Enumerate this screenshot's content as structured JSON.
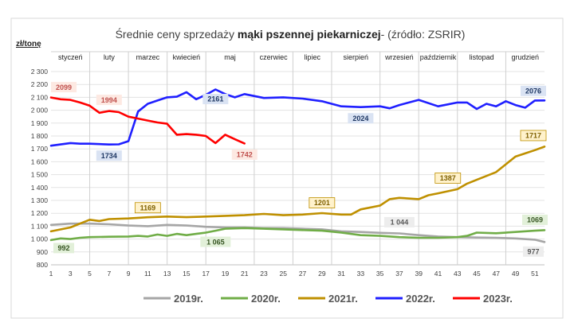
{
  "title": {
    "prefix": "Średnie ceny sprzedaży ",
    "bold": "mąki pszennej piekarniczej",
    "suffix": "- (źródło: ZSRIR)"
  },
  "unit": "zł/tonę",
  "colors": {
    "2019r.": "#a6a6a6",
    "2020r.": "#70ad47",
    "2021r.": "#bf9000",
    "2022r.": "#1f1fff",
    "2023r.": "#ff0000"
  },
  "chart_data": {
    "type": "line",
    "title": "Średnie ceny sprzedaży mąki pszennej piekarniczej- (źródło: ZSRIR)",
    "ylabel": "zł/tonę",
    "xlabel": "",
    "xlim": [
      1,
      52
    ],
    "ylim": [
      800,
      2300
    ],
    "x_ticks": [
      1,
      3,
      5,
      7,
      9,
      11,
      13,
      15,
      17,
      19,
      21,
      23,
      25,
      27,
      29,
      31,
      33,
      35,
      37,
      39,
      41,
      43,
      45,
      47,
      49,
      51
    ],
    "y_ticks": [
      800,
      900,
      1000,
      1100,
      1200,
      1300,
      1400,
      1500,
      1600,
      1700,
      1800,
      1900,
      2000,
      2100,
      2200,
      2300
    ],
    "y_tick_labels": [
      "800",
      "900",
      "1 000",
      "1 100",
      "1 200",
      "1 300",
      "1 400",
      "1 500",
      "1 600",
      "1 700",
      "1 800",
      "1 900",
      "2 000",
      "2 100",
      "2 200",
      "2 300"
    ],
    "months": [
      {
        "name": "styczeń",
        "start": 1,
        "end": 5
      },
      {
        "name": "luty",
        "start": 5,
        "end": 9
      },
      {
        "name": "marzec",
        "start": 9,
        "end": 13
      },
      {
        "name": "kwiecień",
        "start": 13,
        "end": 17
      },
      {
        "name": "maj",
        "start": 17,
        "end": 22
      },
      {
        "name": "czerwiec",
        "start": 22,
        "end": 26
      },
      {
        "name": "lipiec",
        "start": 26,
        "end": 30
      },
      {
        "name": "sierpień",
        "start": 30,
        "end": 35
      },
      {
        "name": "wrzesień",
        "start": 35,
        "end": 39
      },
      {
        "name": "październik",
        "start": 39,
        "end": 43
      },
      {
        "name": "listopad",
        "start": 43,
        "end": 48
      },
      {
        "name": "grudzień",
        "start": 48,
        "end": 52
      }
    ],
    "series": [
      {
        "name": "2019r.",
        "x": [
          1,
          3,
          5,
          7,
          9,
          11,
          13,
          15,
          17,
          19,
          21,
          23,
          25,
          27,
          29,
          31,
          33,
          35,
          37,
          39,
          41,
          43,
          45,
          47,
          49,
          51,
          52
        ],
        "values": [
          1110,
          1120,
          1120,
          1115,
          1105,
          1100,
          1110,
          1105,
          1095,
          1090,
          1090,
          1085,
          1085,
          1080,
          1075,
          1060,
          1055,
          1048,
          1044,
          1030,
          1020,
          1015,
          1012,
          1010,
          1005,
          995,
          977
        ]
      },
      {
        "name": "2020r.",
        "x": [
          1,
          2,
          3,
          4,
          5,
          7,
          9,
          10,
          11,
          12,
          13,
          14,
          15,
          16,
          17,
          18,
          19,
          21,
          23,
          25,
          27,
          29,
          31,
          33,
          35,
          37,
          39,
          41,
          43,
          44,
          45,
          47,
          49,
          51,
          52
        ],
        "values": [
          992,
          1005,
          1000,
          1010,
          1015,
          1018,
          1020,
          1025,
          1020,
          1035,
          1025,
          1040,
          1030,
          1040,
          1050,
          1065,
          1080,
          1085,
          1080,
          1075,
          1070,
          1065,
          1050,
          1030,
          1025,
          1015,
          1010,
          1010,
          1015,
          1025,
          1050,
          1045,
          1055,
          1065,
          1069
        ]
      },
      {
        "name": "2021r.",
        "x": [
          1,
          3,
          5,
          6,
          7,
          9,
          11,
          13,
          15,
          17,
          19,
          21,
          23,
          25,
          27,
          29,
          31,
          32,
          33,
          35,
          36,
          37,
          39,
          40,
          41,
          43,
          44,
          45,
          47,
          48,
          49,
          50,
          51,
          52
        ],
        "values": [
          1060,
          1090,
          1150,
          1140,
          1155,
          1160,
          1169,
          1175,
          1170,
          1175,
          1180,
          1185,
          1195,
          1185,
          1190,
          1201,
          1190,
          1190,
          1230,
          1260,
          1310,
          1320,
          1310,
          1340,
          1355,
          1387,
          1430,
          1460,
          1520,
          1580,
          1640,
          1665,
          1690,
          1717
        ]
      },
      {
        "name": "2022r.",
        "x": [
          1,
          3,
          4,
          5,
          7,
          8,
          9,
          10,
          11,
          12,
          13,
          14,
          15,
          16,
          17,
          18,
          19,
          20,
          21,
          23,
          25,
          27,
          29,
          31,
          33,
          35,
          36,
          37,
          39,
          41,
          43,
          44,
          45,
          46,
          47,
          48,
          49,
          50,
          51,
          52
        ],
        "values": [
          1725,
          1745,
          1740,
          1740,
          1734,
          1735,
          1760,
          1990,
          2050,
          2075,
          2100,
          2105,
          2140,
          2085,
          2120,
          2161,
          2125,
          2100,
          2125,
          2095,
          2100,
          2090,
          2070,
          2030,
          2024,
          2030,
          2015,
          2040,
          2080,
          2030,
          2060,
          2060,
          2010,
          2050,
          2030,
          2070,
          2040,
          2020,
          2075,
          2076
        ]
      },
      {
        "name": "2023r.",
        "x": [
          1,
          2,
          3,
          4,
          5,
          6,
          7,
          8,
          9,
          10,
          11,
          12,
          13,
          14,
          15,
          16,
          17,
          18,
          19,
          20,
          21
        ],
        "values": [
          2099,
          2085,
          2080,
          2060,
          2035,
          1980,
          1994,
          1985,
          1950,
          1935,
          1920,
          1905,
          1895,
          1810,
          1815,
          1810,
          1800,
          1745,
          1810,
          1775,
          1742
        ]
      }
    ],
    "annotations": [
      {
        "series": "2023r.",
        "x": 1,
        "y": 2099,
        "text": "2099"
      },
      {
        "series": "2023r.",
        "x": 7,
        "y": 1994,
        "text": "1994"
      },
      {
        "series": "2023r.",
        "x": 21,
        "y": 1742,
        "text": "1742"
      },
      {
        "series": "2022r.",
        "x": 7,
        "y": 1734,
        "text": "1734"
      },
      {
        "series": "2022r.",
        "x": 18,
        "y": 2161,
        "text": "2161"
      },
      {
        "series": "2022r.",
        "x": 33,
        "y": 2024,
        "text": "2024"
      },
      {
        "series": "2022r.",
        "x": 52,
        "y": 2076,
        "text": "2076"
      },
      {
        "series": "2021r.",
        "x": 11,
        "y": 1169,
        "text": "1169"
      },
      {
        "series": "2021r.",
        "x": 29,
        "y": 1201,
        "text": "1201"
      },
      {
        "series": "2021r.",
        "x": 43,
        "y": 1387,
        "text": "1387"
      },
      {
        "series": "2021r.",
        "x": 52,
        "y": 1717,
        "text": "1717"
      },
      {
        "series": "2020r.",
        "x": 1,
        "y": 992,
        "text": "992"
      },
      {
        "series": "2020r.",
        "x": 18,
        "y": 1065,
        "text": "1 065"
      },
      {
        "series": "2020r.",
        "x": 52,
        "y": 1069,
        "text": "1069"
      },
      {
        "series": "2019r.",
        "x": 37,
        "y": 1044,
        "text": "1 044"
      },
      {
        "series": "2019r.",
        "x": 52,
        "y": 977,
        "text": "977"
      }
    ],
    "legend": {
      "placement": "bottom",
      "entries": [
        "2019r.",
        "2020r.",
        "2021r.",
        "2022r.",
        "2023r."
      ]
    }
  }
}
